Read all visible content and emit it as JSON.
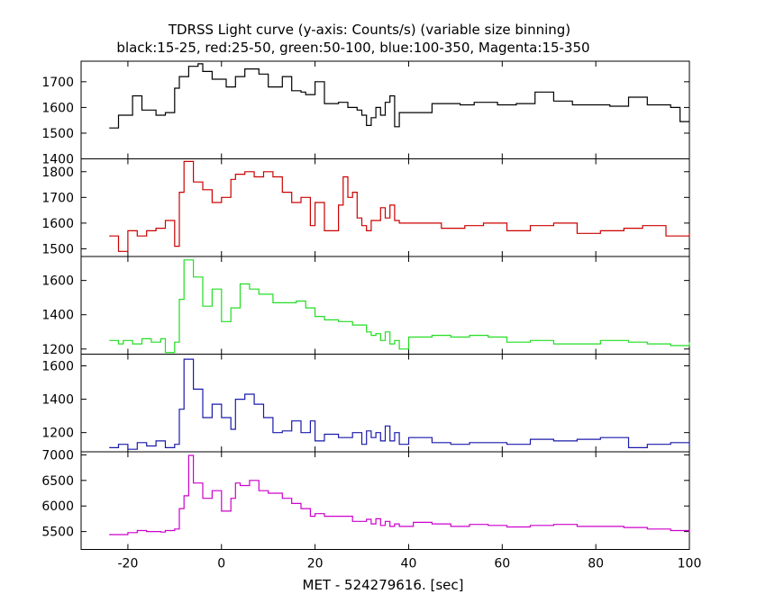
{
  "chart_data": {
    "type": "line",
    "title": "TDRSS Light curve (y-axis: Counts/s) (variable size binning)",
    "subtitle": "black:15-25, red:25-50, green:50-100, blue:100-350, Magenta:15-350",
    "xlabel": "MET - 524279616. [sec]",
    "xlim": [
      -30,
      100
    ],
    "xticks": [
      -20,
      0,
      20,
      40,
      60,
      80,
      100
    ],
    "panels": [
      {
        "color": "#000000",
        "ylim": [
          1400,
          1780
        ],
        "yticks": [
          1400,
          1500,
          1600,
          1700
        ],
        "x": [
          -24,
          -22,
          -19,
          -17,
          -14,
          -12,
          -10,
          -9,
          -7,
          -5,
          -4,
          -2,
          1,
          3,
          5,
          8,
          10,
          13,
          15,
          17,
          18,
          20,
          22,
          25,
          27,
          29,
          30,
          31,
          32,
          33,
          34,
          35,
          36,
          37,
          38,
          41,
          45,
          47,
          51,
          54,
          59,
          63,
          67,
          71,
          75,
          79,
          83,
          87,
          91,
          96,
          98
        ],
        "y": [
          1520,
          1570,
          1645,
          1590,
          1570,
          1580,
          1675,
          1720,
          1760,
          1770,
          1740,
          1710,
          1680,
          1720,
          1750,
          1730,
          1680,
          1720,
          1665,
          1660,
          1650,
          1700,
          1615,
          1620,
          1600,
          1590,
          1570,
          1530,
          1560,
          1600,
          1570,
          1620,
          1645,
          1525,
          1580,
          1580,
          1615,
          1615,
          1610,
          1620,
          1610,
          1615,
          1660,
          1625,
          1610,
          1610,
          1605,
          1640,
          1610,
          1600,
          1545
        ]
      },
      {
        "color": "#cc0000",
        "ylim": [
          1470,
          1850
        ],
        "yticks": [
          1500,
          1600,
          1700,
          1800
        ],
        "x": [
          -24,
          -22,
          -20,
          -18,
          -16,
          -14,
          -12,
          -10,
          -9,
          -8,
          -6,
          -4,
          -2,
          0,
          2,
          3,
          5,
          7,
          9,
          11,
          13,
          15,
          17,
          19,
          20,
          22,
          25,
          26,
          27,
          28,
          29,
          30,
          31,
          32,
          34,
          35,
          36,
          37,
          38,
          42,
          47,
          52,
          56,
          61,
          66,
          71,
          76,
          81,
          86,
          90,
          95,
          100
        ],
        "y": [
          1550,
          1490,
          1570,
          1550,
          1570,
          1580,
          1610,
          1510,
          1720,
          1840,
          1760,
          1730,
          1680,
          1700,
          1770,
          1790,
          1800,
          1780,
          1800,
          1780,
          1720,
          1680,
          1700,
          1590,
          1680,
          1570,
          1670,
          1780,
          1700,
          1720,
          1620,
          1590,
          1570,
          1610,
          1660,
          1620,
          1670,
          1610,
          1600,
          1600,
          1580,
          1590,
          1600,
          1570,
          1590,
          1600,
          1560,
          1570,
          1580,
          1590,
          1550,
          1560
        ]
      },
      {
        "color": "#22dd22",
        "ylim": [
          1170,
          1740
        ],
        "yticks": [
          1200,
          1400,
          1600
        ],
        "x": [
          -24,
          -22,
          -21,
          -19,
          -17,
          -15,
          -13,
          -12,
          -10,
          -9,
          -8,
          -6,
          -4,
          -2,
          0,
          2,
          4,
          6,
          8,
          11,
          14,
          16,
          18,
          20,
          22,
          25,
          28,
          31,
          32,
          33,
          34,
          35,
          36,
          37,
          38,
          40,
          45,
          49,
          53,
          57,
          61,
          66,
          71,
          76,
          81,
          87,
          91,
          96,
          100
        ],
        "y": [
          1250,
          1230,
          1250,
          1230,
          1260,
          1240,
          1260,
          1180,
          1240,
          1490,
          1720,
          1620,
          1450,
          1550,
          1360,
          1440,
          1580,
          1550,
          1520,
          1470,
          1470,
          1480,
          1440,
          1390,
          1370,
          1360,
          1340,
          1300,
          1280,
          1290,
          1250,
          1300,
          1230,
          1250,
          1200,
          1270,
          1280,
          1270,
          1280,
          1270,
          1240,
          1250,
          1230,
          1230,
          1250,
          1240,
          1230,
          1220,
          1240
        ]
      },
      {
        "color": "#1a1aaa",
        "ylim": [
          1085,
          1670
        ],
        "yticks": [
          1200,
          1400,
          1600
        ],
        "x": [
          -24,
          -22,
          -20,
          -18,
          -16,
          -14,
          -12,
          -10,
          -9,
          -8,
          -6,
          -4,
          -2,
          0,
          2,
          3,
          5,
          7,
          9,
          11,
          13,
          15,
          17,
          19,
          20,
          22,
          25,
          28,
          30,
          31,
          32,
          33,
          34,
          35,
          36,
          37,
          38,
          40,
          45,
          49,
          53,
          57,
          61,
          66,
          71,
          76,
          81,
          87,
          91,
          96,
          100
        ],
        "y": [
          1110,
          1130,
          1100,
          1140,
          1120,
          1150,
          1110,
          1130,
          1340,
          1640,
          1460,
          1290,
          1370,
          1290,
          1220,
          1400,
          1430,
          1370,
          1290,
          1200,
          1210,
          1270,
          1200,
          1270,
          1150,
          1190,
          1170,
          1200,
          1130,
          1210,
          1170,
          1200,
          1150,
          1240,
          1150,
          1200,
          1130,
          1170,
          1140,
          1130,
          1140,
          1140,
          1130,
          1160,
          1150,
          1160,
          1170,
          1110,
          1130,
          1140,
          1120
        ]
      },
      {
        "color": "#cc00cc",
        "ylim": [
          5150,
          7060
        ],
        "yticks": [
          5500,
          6000,
          6500,
          7000
        ],
        "x": [
          -24,
          -20,
          -18,
          -16,
          -13,
          -12,
          -10,
          -9,
          -8,
          -7,
          -6,
          -4,
          -2,
          0,
          2,
          3,
          4,
          6,
          8,
          10,
          13,
          15,
          17,
          19,
          20,
          22,
          25,
          28,
          31,
          32,
          33,
          34,
          35,
          36,
          37,
          38,
          41,
          45,
          49,
          53,
          57,
          61,
          66,
          71,
          76,
          81,
          86,
          91,
          96,
          100
        ],
        "y": [
          5440,
          5480,
          5520,
          5500,
          5490,
          5520,
          5550,
          5950,
          6200,
          6990,
          6450,
          6150,
          6300,
          5900,
          6150,
          6450,
          6400,
          6500,
          6300,
          6250,
          6150,
          6050,
          5950,
          5800,
          5850,
          5800,
          5800,
          5700,
          5740,
          5650,
          5750,
          5620,
          5700,
          5600,
          5650,
          5600,
          5680,
          5650,
          5600,
          5640,
          5620,
          5590,
          5620,
          5640,
          5600,
          5600,
          5580,
          5550,
          5520,
          5480
        ]
      }
    ],
    "grid": false,
    "legend": "none"
  }
}
